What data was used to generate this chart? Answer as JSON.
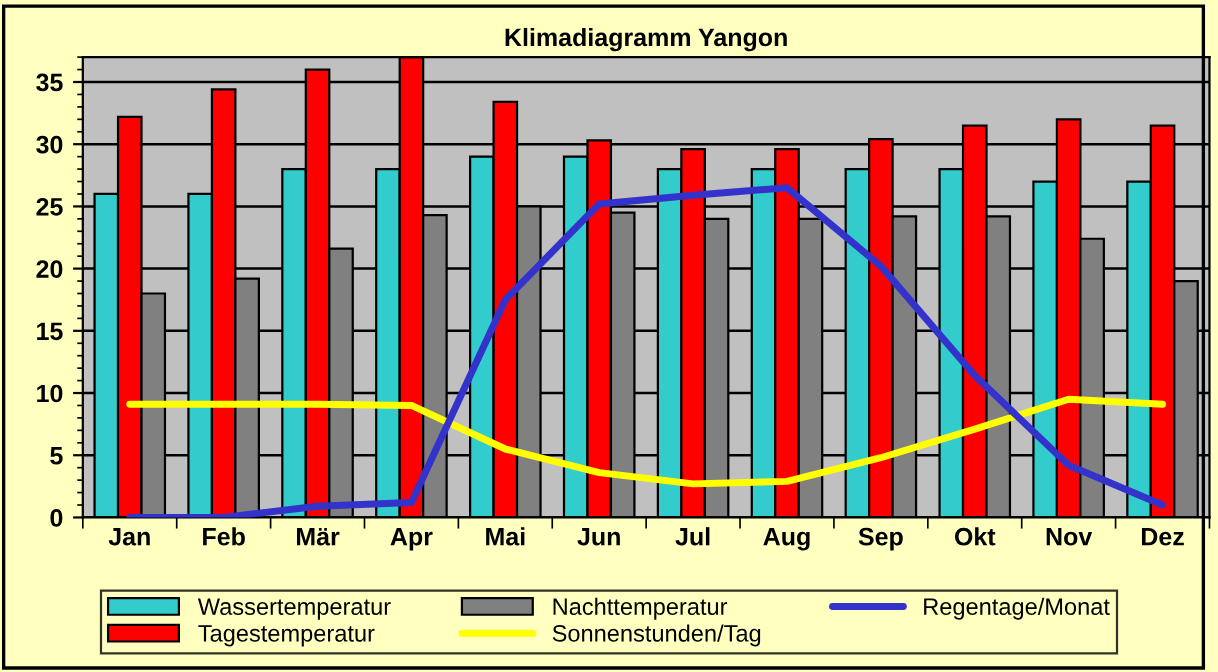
{
  "chart_data": {
    "type": "bar",
    "title": "Klimadiagramm Yangon",
    "categories": [
      "Jan",
      "Feb",
      "Mär",
      "Apr",
      "Mai",
      "Jun",
      "Jul",
      "Aug",
      "Sep",
      "Okt",
      "Nov",
      "Dez"
    ],
    "series": [
      {
        "name": "Wassertemperatur",
        "color": "#33cccc",
        "values": [
          26,
          26,
          28,
          28,
          29,
          29,
          28,
          28,
          28,
          28,
          27,
          27
        ]
      },
      {
        "name": "Tagestemperatur",
        "color": "#ff0000",
        "values": [
          32.2,
          34.4,
          36,
          37,
          33.4,
          30.3,
          29.6,
          29.6,
          30.4,
          31.5,
          32,
          31.5
        ]
      },
      {
        "name": "Nachttemperatur",
        "color": "#808080",
        "values": [
          18,
          19.2,
          21.6,
          24.3,
          25,
          24.5,
          24,
          24,
          24.2,
          24.2,
          22.4,
          19
        ]
      },
      {
        "name": "Sonnenstunden/Tag",
        "type": "line",
        "color": "#ffff00",
        "values": [
          9.1,
          9.1,
          9.1,
          9,
          5.5,
          3.6,
          2.7,
          2.9,
          4.8,
          7.1,
          9.5,
          9.1
        ]
      },
      {
        "name": "Regentage/Monat",
        "type": "line",
        "color": "#3333cc",
        "values": [
          0,
          0,
          0.9,
          1.2,
          17.5,
          25.2,
          25.9,
          26.5,
          20.2,
          11.4,
          4.2,
          1
        ]
      }
    ],
    "ylim": [
      0,
      37
    ],
    "yticks": [
      0,
      5,
      10,
      15,
      20,
      25,
      30,
      35
    ],
    "grid": "y",
    "legend": "bottom"
  }
}
